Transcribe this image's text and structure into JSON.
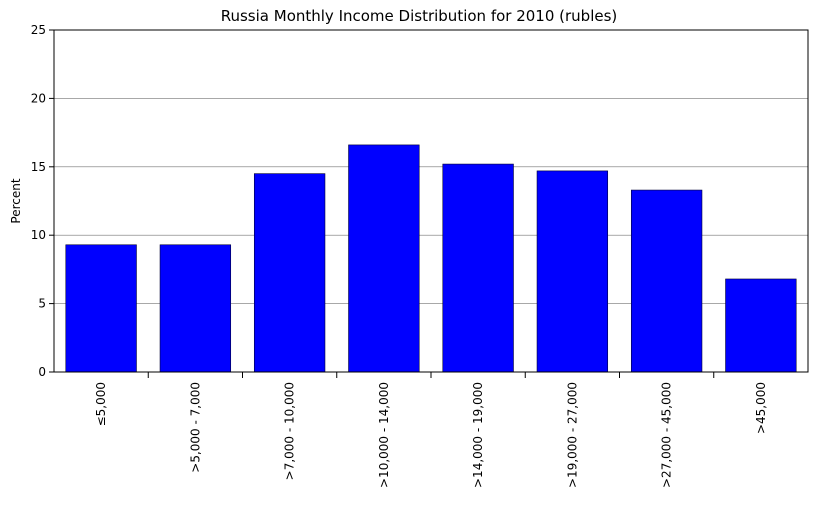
{
  "chart_data": {
    "type": "bar",
    "title": "Russia Monthly Income Distribution for 2010 (rubles)",
    "xlabel": "",
    "ylabel": "Percent",
    "categories": [
      "≤5,000",
      ">5,000 - 7,000",
      ">7,000 - 10,000",
      ">10,000 - 14,000",
      ">14,000 - 19,000",
      ">19,000 - 27,000",
      ">27,000 - 45,000",
      ">45,000"
    ],
    "values": [
      9.3,
      9.3,
      14.5,
      16.6,
      15.2,
      14.7,
      13.3,
      6.8
    ],
    "ylim": [
      0,
      25
    ],
    "yticks": [
      0,
      5,
      10,
      15,
      20,
      25
    ],
    "grid": "horizontal",
    "bar_color": "#0000ff",
    "legend": "none"
  }
}
